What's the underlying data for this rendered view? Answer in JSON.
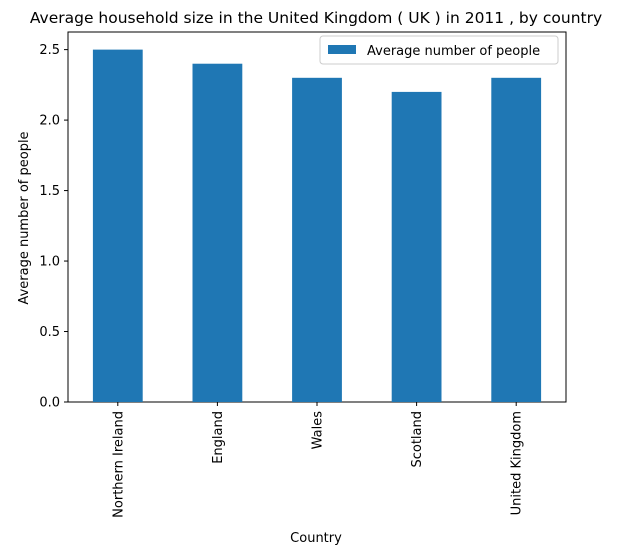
{
  "chart_data": {
    "type": "bar",
    "title": "Average household size in the United Kingdom ( UK ) in 2011 , by country",
    "xlabel": "Country",
    "ylabel": "Average number of people",
    "categories": [
      "Northern Ireland",
      "England",
      "Wales",
      "Scotland",
      "United Kingdom"
    ],
    "series": [
      {
        "name": "Average number of people",
        "values": [
          2.5,
          2.4,
          2.3,
          2.2,
          2.3
        ],
        "color": "#1f77b4"
      }
    ],
    "ylim": [
      0,
      2.625
    ],
    "yticks": [
      0.0,
      0.5,
      1.0,
      1.5,
      2.0,
      2.5
    ],
    "ytick_labels": [
      "0.0",
      "0.5",
      "1.0",
      "1.5",
      "2.0",
      "2.5"
    ],
    "legend": {
      "position": "upper-right",
      "entries": [
        "Average number of people"
      ]
    },
    "grid": false
  }
}
